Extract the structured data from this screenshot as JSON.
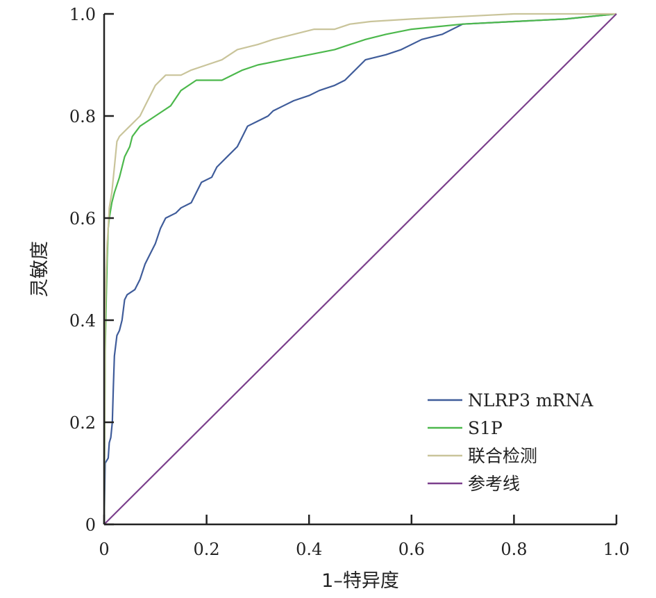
{
  "chart_data": {
    "type": "line",
    "xlabel": "1–特异度",
    "ylabel": "灵敏度",
    "xlim": [
      0,
      1
    ],
    "ylim": [
      0,
      1
    ],
    "x_ticks": [
      0,
      0.2,
      0.4,
      0.6,
      0.8,
      1.0
    ],
    "x_tick_labels": [
      "0",
      "0.2",
      "0.4",
      "0.6",
      "0.8",
      "1.0"
    ],
    "y_ticks": [
      0,
      0.2,
      0.4,
      0.6,
      0.8,
      1.0
    ],
    "y_tick_labels": [
      "0",
      "0.2",
      "0.4",
      "0.6",
      "0.8",
      "1.0"
    ],
    "grid": false,
    "legend_position": "bottom-right",
    "series": [
      {
        "name": "NLRP3 mRNA",
        "color": "#3f5c9a",
        "points": [
          [
            0,
            0
          ],
          [
            0.002,
            0.12
          ],
          [
            0.008,
            0.13
          ],
          [
            0.01,
            0.16
          ],
          [
            0.013,
            0.17
          ],
          [
            0.016,
            0.2
          ],
          [
            0.018,
            0.27
          ],
          [
            0.02,
            0.33
          ],
          [
            0.025,
            0.37
          ],
          [
            0.03,
            0.38
          ],
          [
            0.035,
            0.4
          ],
          [
            0.04,
            0.44
          ],
          [
            0.045,
            0.45
          ],
          [
            0.06,
            0.46
          ],
          [
            0.07,
            0.48
          ],
          [
            0.08,
            0.51
          ],
          [
            0.09,
            0.53
          ],
          [
            0.1,
            0.55
          ],
          [
            0.11,
            0.58
          ],
          [
            0.12,
            0.6
          ],
          [
            0.14,
            0.61
          ],
          [
            0.15,
            0.62
          ],
          [
            0.17,
            0.63
          ],
          [
            0.18,
            0.65
          ],
          [
            0.19,
            0.67
          ],
          [
            0.21,
            0.68
          ],
          [
            0.22,
            0.7
          ],
          [
            0.24,
            0.72
          ],
          [
            0.26,
            0.74
          ],
          [
            0.27,
            0.76
          ],
          [
            0.28,
            0.78
          ],
          [
            0.3,
            0.79
          ],
          [
            0.32,
            0.8
          ],
          [
            0.33,
            0.81
          ],
          [
            0.35,
            0.82
          ],
          [
            0.37,
            0.83
          ],
          [
            0.4,
            0.84
          ],
          [
            0.42,
            0.85
          ],
          [
            0.45,
            0.86
          ],
          [
            0.47,
            0.87
          ],
          [
            0.49,
            0.89
          ],
          [
            0.51,
            0.91
          ],
          [
            0.55,
            0.92
          ],
          [
            0.58,
            0.93
          ],
          [
            0.62,
            0.95
          ],
          [
            0.66,
            0.96
          ],
          [
            0.7,
            0.98
          ],
          [
            0.8,
            0.985
          ],
          [
            0.9,
            0.99
          ],
          [
            1.0,
            1.0
          ]
        ]
      },
      {
        "name": "S1P",
        "color": "#4cb84c",
        "points": [
          [
            0,
            0
          ],
          [
            0.002,
            0.34
          ],
          [
            0.004,
            0.44
          ],
          [
            0.006,
            0.52
          ],
          [
            0.008,
            0.58
          ],
          [
            0.01,
            0.6
          ],
          [
            0.015,
            0.63
          ],
          [
            0.02,
            0.65
          ],
          [
            0.03,
            0.68
          ],
          [
            0.04,
            0.72
          ],
          [
            0.05,
            0.74
          ],
          [
            0.055,
            0.76
          ],
          [
            0.07,
            0.78
          ],
          [
            0.1,
            0.8
          ],
          [
            0.13,
            0.82
          ],
          [
            0.15,
            0.85
          ],
          [
            0.18,
            0.87
          ],
          [
            0.23,
            0.87
          ],
          [
            0.27,
            0.89
          ],
          [
            0.3,
            0.9
          ],
          [
            0.35,
            0.91
          ],
          [
            0.4,
            0.92
          ],
          [
            0.45,
            0.93
          ],
          [
            0.48,
            0.94
          ],
          [
            0.51,
            0.95
          ],
          [
            0.55,
            0.96
          ],
          [
            0.6,
            0.97
          ],
          [
            0.65,
            0.975
          ],
          [
            0.7,
            0.98
          ],
          [
            0.8,
            0.985
          ],
          [
            0.9,
            0.99
          ],
          [
            1.0,
            1.0
          ]
        ]
      },
      {
        "name": "联合检测",
        "color": "#c9c49a",
        "points": [
          [
            0,
            0
          ],
          [
            0.002,
            0.4
          ],
          [
            0.004,
            0.5
          ],
          [
            0.006,
            0.55
          ],
          [
            0.008,
            0.58
          ],
          [
            0.01,
            0.62
          ],
          [
            0.015,
            0.65
          ],
          [
            0.02,
            0.7
          ],
          [
            0.025,
            0.75
          ],
          [
            0.03,
            0.76
          ],
          [
            0.04,
            0.77
          ],
          [
            0.05,
            0.78
          ],
          [
            0.06,
            0.79
          ],
          [
            0.07,
            0.8
          ],
          [
            0.08,
            0.82
          ],
          [
            0.09,
            0.84
          ],
          [
            0.1,
            0.86
          ],
          [
            0.12,
            0.88
          ],
          [
            0.15,
            0.88
          ],
          [
            0.17,
            0.89
          ],
          [
            0.2,
            0.9
          ],
          [
            0.23,
            0.91
          ],
          [
            0.26,
            0.93
          ],
          [
            0.3,
            0.94
          ],
          [
            0.33,
            0.95
          ],
          [
            0.37,
            0.96
          ],
          [
            0.41,
            0.97
          ],
          [
            0.45,
            0.97
          ],
          [
            0.48,
            0.98
          ],
          [
            0.52,
            0.985
          ],
          [
            0.6,
            0.99
          ],
          [
            0.7,
            0.995
          ],
          [
            0.8,
            1.0
          ],
          [
            1.0,
            1.0
          ]
        ]
      },
      {
        "name": "参考线",
        "color": "#7b3f8c",
        "points": [
          [
            0,
            0
          ],
          [
            1,
            1
          ]
        ]
      }
    ]
  }
}
